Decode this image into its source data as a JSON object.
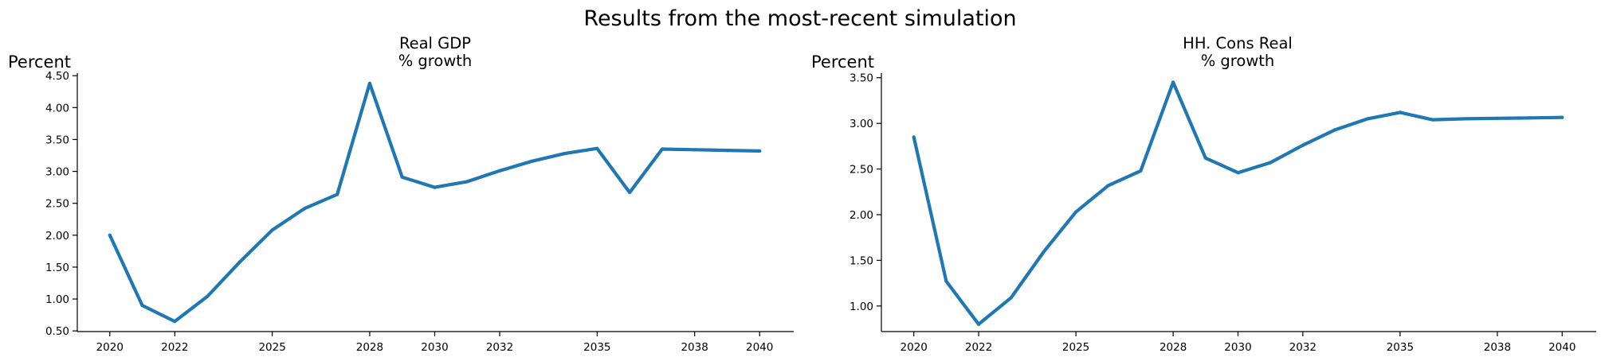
{
  "figure": {
    "title": "Results from the most-recent simulation",
    "colors": {
      "line": "#1f77b4",
      "axis": "#000000",
      "background": "#ffffff"
    }
  },
  "chart_data": [
    {
      "type": "line",
      "title_lines": [
        "Real GDP",
        "% growth"
      ],
      "ylabel": "Percent",
      "xlabel": "",
      "x": [
        2020,
        2021,
        2022,
        2023,
        2024,
        2025,
        2026,
        2027,
        2028,
        2029,
        2030,
        2031,
        2032,
        2033,
        2034,
        2035,
        2036,
        2037,
        2038,
        2039,
        2040
      ],
      "series": [
        {
          "values": [
            2.0,
            0.9,
            0.65,
            1.04,
            1.58,
            2.08,
            2.42,
            2.64,
            4.38,
            2.91,
            2.75,
            2.84,
            3.01,
            3.16,
            3.28,
            3.36,
            2.67,
            3.35,
            3.34,
            3.33,
            3.32
          ]
        }
      ],
      "xticks": [
        2020,
        2022,
        2025,
        2028,
        2030,
        2032,
        2035,
        2038,
        2040
      ],
      "xtick_labels": [
        "2020",
        "2022",
        "2025",
        "2028",
        "2030",
        "2032",
        "2035",
        "2038",
        "2040"
      ],
      "xlim": [
        2019,
        2041.05
      ],
      "yticks": [
        0.5,
        1.0,
        1.5,
        2.0,
        2.5,
        3.0,
        3.5,
        4.0,
        4.5
      ],
      "ytick_labels": [
        "0.50",
        "1.00",
        "1.50",
        "2.00",
        "2.50",
        "3.00",
        "3.50",
        "4.00",
        "4.50"
      ],
      "ylim": [
        0.49,
        4.54
      ],
      "grid": false,
      "legend": "none"
    },
    {
      "type": "line",
      "title_lines": [
        "HH. Cons Real",
        "% growth"
      ],
      "ylabel": "Percent",
      "xlabel": "",
      "x": [
        2020,
        2021,
        2022,
        2023,
        2024,
        2025,
        2026,
        2027,
        2028,
        2029,
        2030,
        2031,
        2032,
        2033,
        2034,
        2035,
        2036,
        2037,
        2038,
        2039,
        2040
      ],
      "series": [
        {
          "values": [
            2.85,
            1.27,
            0.8,
            1.09,
            1.59,
            2.03,
            2.32,
            2.48,
            3.45,
            2.62,
            2.46,
            2.57,
            2.76,
            2.93,
            3.05,
            3.12,
            3.04,
            3.05,
            3.055,
            3.06,
            3.065
          ]
        }
      ],
      "xticks": [
        2020,
        2022,
        2025,
        2028,
        2030,
        2032,
        2035,
        2038,
        2040
      ],
      "xtick_labels": [
        "2020",
        "2022",
        "2025",
        "2028",
        "2030",
        "2032",
        "2035",
        "2038",
        "2040"
      ],
      "xlim": [
        2019,
        2041.05
      ],
      "yticks": [
        1.0,
        1.5,
        2.0,
        2.5,
        3.0,
        3.5
      ],
      "ytick_labels": [
        "1.00",
        "1.50",
        "2.00",
        "2.50",
        "3.00",
        "3.50"
      ],
      "ylim": [
        0.72,
        3.55
      ],
      "grid": false,
      "legend": "none"
    }
  ]
}
